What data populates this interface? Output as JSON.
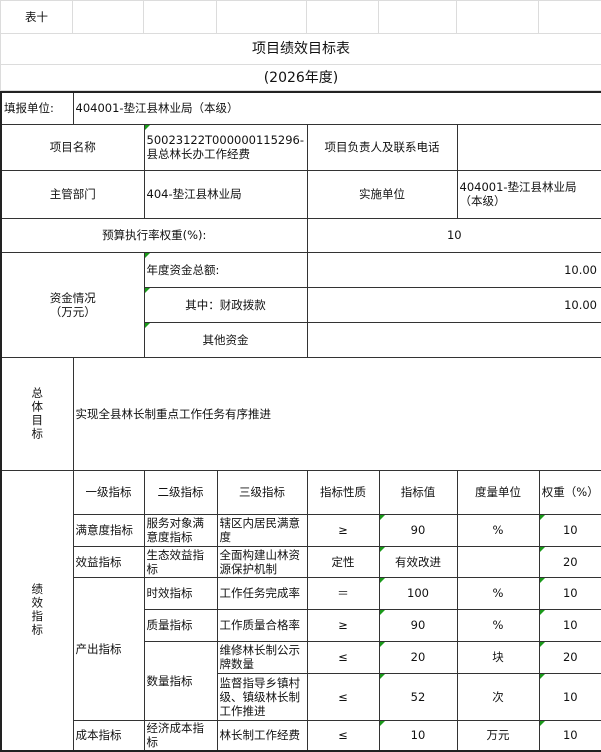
{
  "sheet_label": "表十",
  "title": "项目绩效目标表",
  "subtitle": "(2026年度)",
  "reporting_unit": {
    "label": "填报单位:",
    "value": "404001-垫江县林业局（本级）"
  },
  "project_name": {
    "label": "项目名称",
    "value": "50023122T000000115296-县总林长办工作经费"
  },
  "project_contact": {
    "label": "项目负责人及联系电话",
    "value": ""
  },
  "department": {
    "label": "主管部门",
    "value": "404-垫江县林业局"
  },
  "implementing_unit": {
    "label": "实施单位",
    "value": "404001-垫江县林业局（本级）"
  },
  "budget_weight": {
    "label": "预算执行率权重(%):",
    "value": "10"
  },
  "funding": {
    "label": "资金情况\n（万元）",
    "total_label": "年度资金总额:",
    "total_value": "10.00",
    "fiscal_label": "其中：财政拨款",
    "fiscal_value": "10.00",
    "other_label": "其他资金",
    "other_value": ""
  },
  "overall_goal": {
    "label": "总体目标",
    "value": "实现全县林长制重点工作任务有序推进"
  },
  "indicators": {
    "label": "绩效指标",
    "headers": [
      "一级指标",
      "二级指标",
      "三级指标",
      "指标性质",
      "指标值",
      "度量单位",
      "权重（%）"
    ],
    "rows": [
      {
        "l1": "满意度指标",
        "l2": "服务对象满意度指标",
        "l3": "辖区内居民满意度",
        "nature": "≥",
        "value": "90",
        "unit": "%",
        "weight": "10"
      },
      {
        "l1": "效益指标",
        "l2": "生态效益指标",
        "l3": "全面构建山林资源保护机制",
        "nature": "定性",
        "value": "有效改进",
        "unit": "",
        "weight": "20"
      },
      {
        "l1": "产出指标",
        "l2": "时效指标",
        "l3": "工作任务完成率",
        "nature": "＝",
        "value": "100",
        "unit": "%",
        "weight": "10"
      },
      {
        "l1": "",
        "l2": "质量指标",
        "l3": "工作质量合格率",
        "nature": "≥",
        "value": "90",
        "unit": "%",
        "weight": "10"
      },
      {
        "l1": "",
        "l2": "数量指标",
        "l3": "维修林长制公示牌数量",
        "nature": "≤",
        "value": "20",
        "unit": "块",
        "weight": "20"
      },
      {
        "l1": "",
        "l2": "",
        "l3": "监督指导乡镇村级、镇级林长制工作推进",
        "nature": "≤",
        "value": "52",
        "unit": "次",
        "weight": "10"
      },
      {
        "l1": "成本指标",
        "l2": "经济成本指标",
        "l3": "林长制工作经费",
        "nature": "≤",
        "value": "10",
        "unit": "万元",
        "weight": "10"
      }
    ]
  }
}
